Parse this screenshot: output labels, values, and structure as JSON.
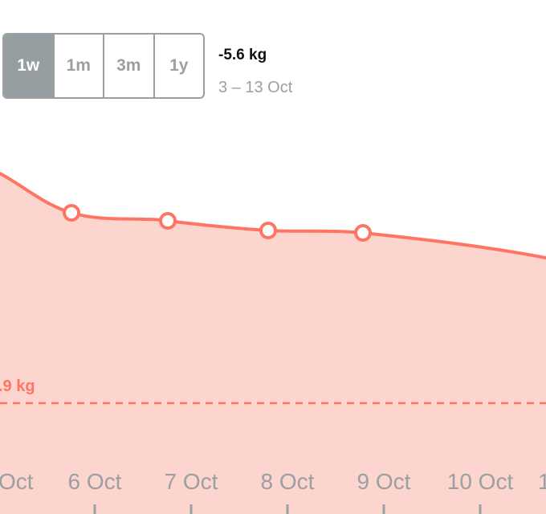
{
  "period_selector": {
    "options": [
      "1w",
      "1m",
      "3m",
      "1y"
    ],
    "selected": "1w"
  },
  "summary": {
    "change": "-5.6 kg",
    "date_range": "3 – 13 Oct"
  },
  "goal_line": {
    "label": ".9 kg"
  },
  "colors": {
    "accent": "#ff7563",
    "fill": "#fdd5cf",
    "muted": "#9aa0a2",
    "active_segment": "#979ea1"
  },
  "chart_data": {
    "type": "area",
    "x_labels": [
      "Oct",
      "6 Oct",
      "7 Oct",
      "8 Oct",
      "9 Oct",
      "10 Oct",
      "1"
    ],
    "points": [
      {
        "x": "6 Oct",
        "marker": true
      },
      {
        "x": "7 Oct",
        "marker": true
      },
      {
        "x": "8 Oct",
        "marker": true
      },
      {
        "x": "9 Oct",
        "marker": true
      }
    ]
  }
}
